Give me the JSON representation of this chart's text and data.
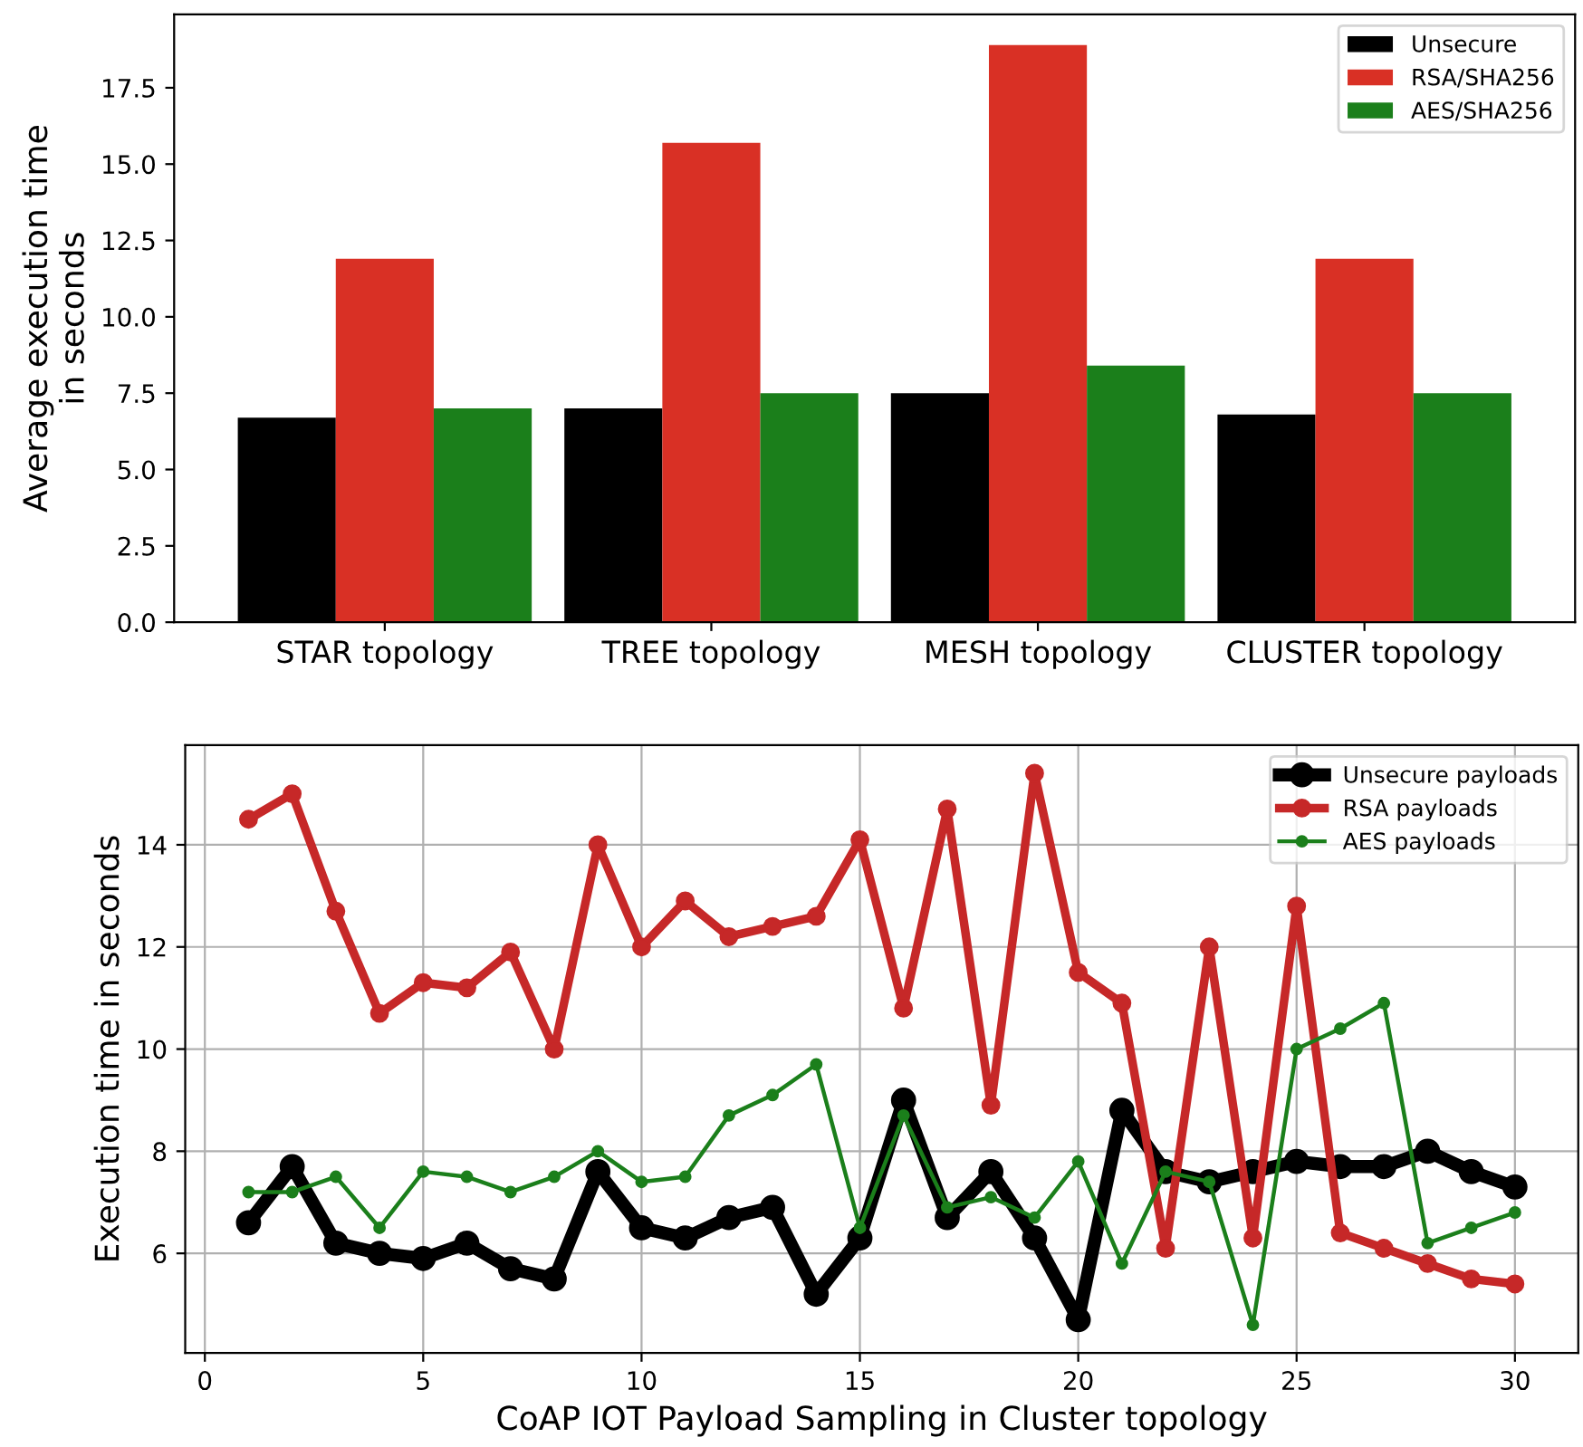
{
  "chart_data": [
    {
      "type": "bar",
      "ylabel": "Average execution time\nin seconds",
      "categories": [
        "STAR topology",
        "TREE topology",
        "MESH topology",
        "CLUSTER topology"
      ],
      "series": [
        {
          "name": "Unsecure",
          "color": "#000000",
          "values": [
            6.7,
            7.0,
            7.5,
            6.8
          ]
        },
        {
          "name": "RSA/SHA256",
          "color": "#d93025",
          "values": [
            11.9,
            15.7,
            18.9,
            11.9
          ]
        },
        {
          "name": "AES/SHA256",
          "color": "#1b7f1b",
          "values": [
            7.0,
            7.5,
            8.4,
            7.5
          ]
        }
      ],
      "ylim": [
        0,
        19.9
      ],
      "yticks": [
        {
          "value": 0,
          "label": "0.0"
        },
        2.5,
        {
          "value": 5,
          "label": "5.0"
        },
        7.5,
        {
          "value": 10,
          "label": "10.0"
        },
        12.5,
        {
          "value": 15,
          "label": "15.0"
        },
        17.5
      ],
      "legend": "top right",
      "grid": false
    },
    {
      "type": "line",
      "xlabel": "CoAP IOT Payload Sampling in Cluster topology",
      "ylabel": "Execution time in seconds",
      "x": [
        1,
        2,
        3,
        4,
        5,
        6,
        7,
        8,
        9,
        10,
        11,
        12,
        13,
        14,
        15,
        16,
        17,
        18,
        19,
        20,
        21,
        22,
        23,
        24,
        25,
        26,
        27,
        28,
        29,
        30
      ],
      "series": [
        {
          "name": "Unsecure payloads",
          "color": "#000000",
          "values": [
            6.6,
            7.7,
            6.2,
            6.0,
            5.9,
            6.2,
            5.7,
            5.5,
            7.6,
            6.5,
            6.3,
            6.7,
            6.9,
            5.2,
            6.3,
            9.0,
            6.7,
            7.6,
            6.3,
            4.7,
            8.8,
            7.6,
            7.4,
            7.6,
            7.8,
            7.7,
            7.7,
            8.0,
            7.6,
            7.3
          ]
        },
        {
          "name": "RSA payloads",
          "color": "#c62828",
          "values": [
            14.5,
            15.0,
            12.7,
            10.7,
            11.3,
            11.2,
            11.9,
            10.0,
            14.0,
            12.0,
            12.9,
            12.2,
            12.4,
            12.6,
            14.1,
            10.8,
            14.7,
            8.9,
            15.4,
            11.5,
            10.9,
            6.1,
            12.0,
            6.3,
            12.8,
            6.4,
            6.1,
            5.8,
            5.5,
            5.4
          ]
        },
        {
          "name": "AES payloads",
          "color": "#1b7f1b",
          "values": [
            7.2,
            7.2,
            7.5,
            6.5,
            7.6,
            7.5,
            7.2,
            7.5,
            8.0,
            7.4,
            7.5,
            8.7,
            9.1,
            9.7,
            6.5,
            8.7,
            6.9,
            7.1,
            6.7,
            7.8,
            5.8,
            7.6,
            7.4,
            4.6,
            10.0,
            10.4,
            10.9,
            6.2,
            6.5,
            6.8
          ]
        }
      ],
      "xlim": [
        -0.45,
        31.45
      ],
      "xticks": [
        0,
        5,
        10,
        15,
        20,
        25,
        30
      ],
      "ylim": [
        4.05,
        15.95
      ],
      "yticks": [
        6,
        8,
        10,
        12,
        14
      ],
      "marker": "circle",
      "line_style": "solid",
      "grid": true,
      "legend": "top right"
    }
  ]
}
